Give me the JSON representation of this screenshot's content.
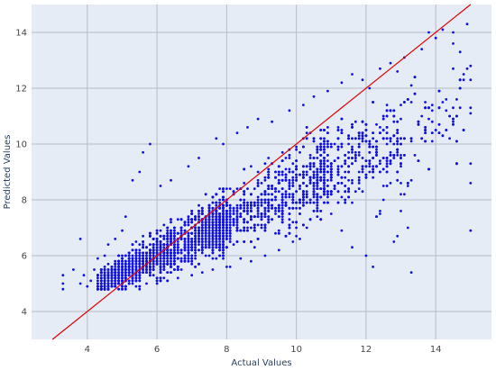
{
  "chart_data": {
    "type": "scatter",
    "xlabel": "Actual Values",
    "ylabel": "Predicted Values",
    "xlim": [
      2.4,
      15.6
    ],
    "ylim": [
      3.0,
      15.0
    ],
    "x_ticks": [
      4,
      6,
      8,
      10,
      12,
      14
    ],
    "y_ticks": [
      4,
      6,
      8,
      10,
      12,
      14
    ],
    "grid": true,
    "colors": {
      "background": "#e5ecf6",
      "grid": "#b8bcc4",
      "points": "#1010e0",
      "reference_line": "#e00000"
    },
    "reference_line": {
      "x": [
        3,
        15
      ],
      "y": [
        3,
        15
      ]
    },
    "series": [
      {
        "points": [
          [
            3.3,
            5.3
          ],
          [
            3.3,
            5.0
          ],
          [
            3.3,
            4.8
          ],
          [
            3.6,
            5.5
          ],
          [
            3.8,
            5.0
          ],
          [
            3.9,
            5.3
          ],
          [
            4.0,
            4.9
          ],
          [
            4.1,
            5.1
          ],
          [
            4.2,
            5.5
          ],
          [
            4.3,
            5.9
          ],
          [
            3.8,
            6.6
          ],
          [
            4.5,
            6.0
          ],
          [
            4.6,
            6.4
          ],
          [
            4.8,
            6.6
          ],
          [
            5.0,
            6.9
          ],
          [
            5.1,
            7.4
          ],
          [
            5.3,
            8.7
          ],
          [
            5.5,
            9.0
          ],
          [
            5.6,
            9.7
          ],
          [
            5.8,
            10.0
          ],
          [
            6.1,
            8.5
          ],
          [
            6.4,
            8.7
          ],
          [
            6.9,
            9.2
          ],
          [
            7.2,
            9.5
          ],
          [
            7.7,
            10.2
          ],
          [
            7.9,
            10.0
          ],
          [
            8.3,
            10.4
          ],
          [
            8.6,
            10.6
          ],
          [
            8.9,
            10.9
          ],
          [
            9.3,
            10.8
          ],
          [
            9.8,
            11.2
          ],
          [
            10.2,
            11.4
          ],
          [
            10.5,
            11.7
          ],
          [
            10.9,
            11.9
          ],
          [
            11.3,
            12.2
          ],
          [
            11.6,
            12.5
          ],
          [
            11.9,
            12.3
          ],
          [
            12.1,
            12.0
          ],
          [
            12.4,
            12.7
          ],
          [
            12.7,
            12.9
          ],
          [
            12.9,
            12.6
          ],
          [
            13.1,
            13.1
          ],
          [
            13.4,
            12.4
          ],
          [
            13.6,
            13.4
          ],
          [
            13.8,
            14.0
          ],
          [
            14.0,
            13.8
          ],
          [
            14.2,
            14.1
          ],
          [
            14.5,
            13.6
          ],
          [
            14.7,
            13.3
          ],
          [
            14.9,
            14.3
          ],
          [
            14.8,
            12.5
          ],
          [
            15.0,
            12.8
          ],
          [
            15.0,
            12.3
          ],
          [
            15.0,
            11.1
          ],
          [
            15.0,
            9.3
          ],
          [
            15.0,
            8.6
          ],
          [
            15.0,
            6.9
          ],
          [
            14.6,
            11.6
          ],
          [
            14.2,
            11.5
          ],
          [
            13.9,
            11.4
          ],
          [
            13.6,
            11.0
          ],
          [
            13.4,
            9.6
          ],
          [
            13.3,
            8.7
          ],
          [
            13.2,
            8.5
          ],
          [
            13.1,
            8.2
          ],
          [
            13.0,
            7.6
          ],
          [
            13.2,
            7.0
          ],
          [
            12.9,
            6.7
          ],
          [
            12.6,
            10.2
          ],
          [
            12.3,
            9.8
          ],
          [
            12.1,
            9.3
          ],
          [
            11.8,
            8.8
          ],
          [
            11.6,
            8.6
          ],
          [
            11.4,
            8.3
          ],
          [
            11.2,
            7.9
          ],
          [
            11.0,
            7.5
          ],
          [
            11.3,
            6.9
          ],
          [
            11.6,
            6.3
          ],
          [
            12.2,
            5.6
          ],
          [
            12.0,
            6.0
          ],
          [
            13.3,
            5.4
          ],
          [
            12.8,
            6.5
          ],
          [
            10.3,
            7.0
          ],
          [
            10.1,
            6.6
          ],
          [
            9.9,
            6.5
          ],
          [
            9.5,
            6.2
          ],
          [
            9.1,
            6.0
          ],
          [
            8.7,
            5.8
          ],
          [
            8.4,
            5.9
          ],
          [
            8.0,
            5.6
          ],
          [
            7.6,
            5.5
          ],
          [
            7.3,
            5.4
          ],
          [
            7.0,
            5.3
          ],
          [
            6.6,
            5.2
          ],
          [
            6.3,
            5.1
          ],
          [
            6.0,
            5.0
          ],
          [
            5.7,
            5.0
          ],
          [
            5.4,
            4.9
          ],
          [
            5.1,
            4.9
          ],
          [
            4.8,
            4.9
          ],
          [
            4.6,
            4.8
          ],
          [
            4.4,
            4.8
          ]
        ]
      }
    ]
  }
}
